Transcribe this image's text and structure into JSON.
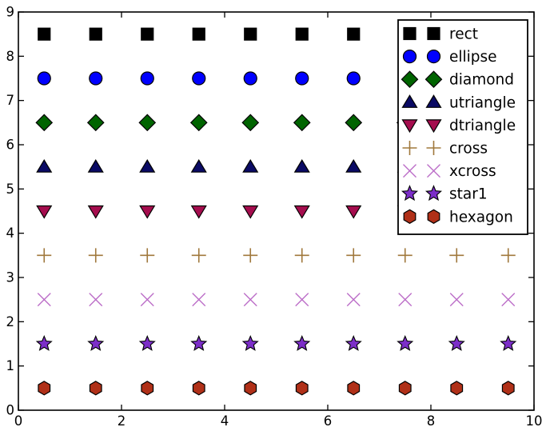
{
  "chart_data": {
    "type": "scatter",
    "title": "",
    "xlabel": "",
    "ylabel": "",
    "xlim": [
      0,
      10
    ],
    "ylim": [
      0,
      9
    ],
    "xticks": [
      0,
      2,
      4,
      6,
      8,
      10
    ],
    "yticks": [
      0,
      1,
      2,
      3,
      4,
      5,
      6,
      7,
      8,
      9
    ],
    "grid": false,
    "background": "#ffffff",
    "axis_color": "#000000",
    "tick_direction": "in",
    "legend": {
      "position": "top-right",
      "markers_per_entry": 2,
      "border_color": "#000000",
      "fill_color": "#ffffff"
    },
    "x": [
      0.5,
      1.5,
      2.5,
      3.5,
      4.5,
      5.5,
      6.5,
      7.5,
      8.5,
      9.5
    ],
    "series": [
      {
        "name": "rect",
        "marker": "square",
        "color": "#000000",
        "edge": "#000000",
        "y": 8.5
      },
      {
        "name": "ellipse",
        "marker": "circle",
        "color": "#0000ff",
        "edge": "#000000",
        "y": 7.5
      },
      {
        "name": "diamond",
        "marker": "diamond",
        "color": "#006400",
        "edge": "#000000",
        "y": 6.5
      },
      {
        "name": "utriangle",
        "marker": "triangle-up",
        "color": "#0a0a64",
        "edge": "#000000",
        "y": 5.5
      },
      {
        "name": "dtriangle",
        "marker": "triangle-down",
        "color": "#a50d4e",
        "edge": "#000000",
        "y": 4.5
      },
      {
        "name": "cross",
        "marker": "plus",
        "color": "#a0783c",
        "edge": "none",
        "y": 3.5
      },
      {
        "name": "xcross",
        "marker": "x",
        "color": "#bc6ec8",
        "edge": "none",
        "y": 2.5
      },
      {
        "name": "star1",
        "marker": "star5",
        "color": "#7c2ec8",
        "edge": "#000000",
        "y": 1.5
      },
      {
        "name": "hexagon",
        "marker": "hexagon",
        "color": "#b03018",
        "edge": "#000000",
        "y": 0.5
      }
    ]
  }
}
